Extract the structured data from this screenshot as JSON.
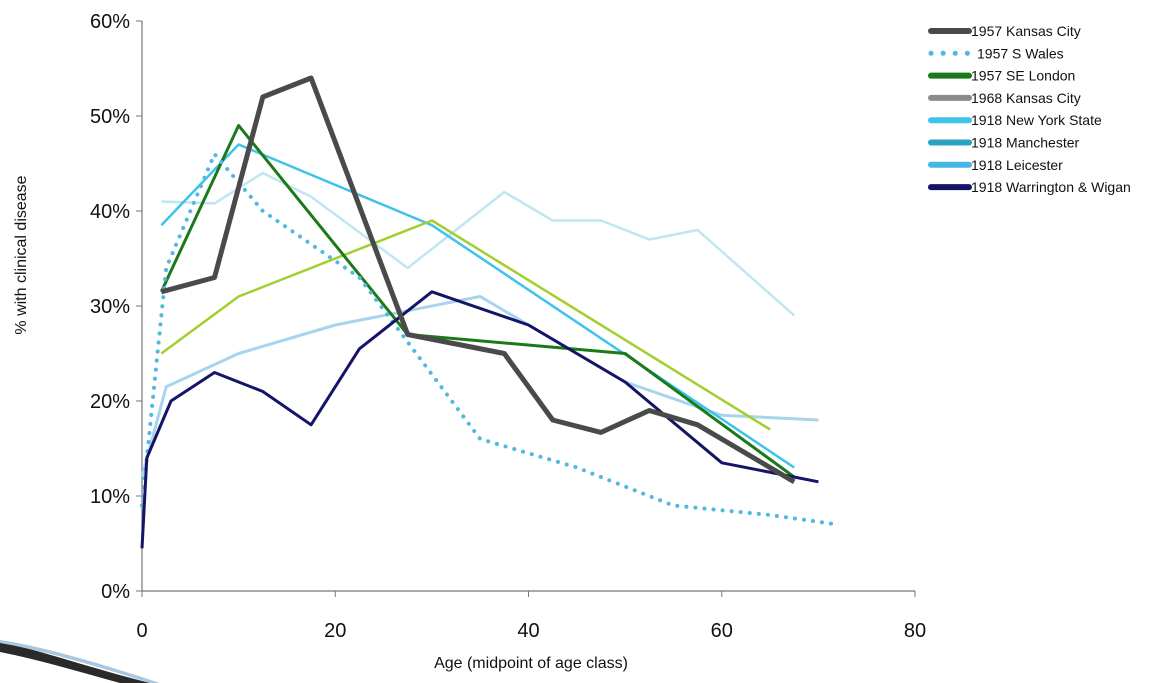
{
  "chart_data": {
    "type": "line",
    "title": "",
    "xlabel": "Age (midpoint of age class)",
    "ylabel": "% with clinical disease",
    "xlim": [
      0,
      80
    ],
    "ylim": [
      0,
      60
    ],
    "x_ticks": [
      0,
      20,
      40,
      60,
      80
    ],
    "y_ticks": [
      0,
      10,
      20,
      30,
      40,
      50,
      60
    ],
    "x_tick_labels": [
      "0",
      "20",
      "40",
      "60",
      "80"
    ],
    "y_tick_labels": [
      "0%",
      "10%",
      "20%",
      "30%",
      "40%",
      "50%",
      "60%"
    ],
    "grid": false,
    "legend_position": "top-right",
    "series": [
      {
        "name": "1957 Kansas City",
        "color": "#4a4a4a",
        "dash": "solid",
        "width": 5,
        "x": [
          2,
          7.5,
          12.5,
          17.5,
          27.5,
          37.5,
          42.5,
          47.5,
          52.5,
          57.5,
          67.5
        ],
        "y": [
          31.5,
          33,
          52,
          54,
          27,
          25,
          18,
          16.7,
          19,
          17.5,
          11.5
        ]
      },
      {
        "name": "1957 S Wales",
        "color": "#52b8e0",
        "dash": "dotted",
        "width": 4,
        "x": [
          0,
          2.5,
          7.5,
          12.5,
          22.5,
          35,
          45,
          55,
          65,
          72
        ],
        "y": [
          9,
          34,
          46,
          40,
          33,
          16,
          13,
          9,
          8,
          7
        ]
      },
      {
        "name": "1957 SE London",
        "color": "#1a7a1a",
        "dash": "solid",
        "width": 3,
        "x": [
          2,
          10,
          27.5,
          50,
          67.5
        ],
        "y": [
          31.5,
          49,
          27,
          25,
          12
        ]
      },
      {
        "name": "1968 Kansas City",
        "color": "#bfe6f2",
        "dash": "solid",
        "width": 2.5,
        "x": [
          2,
          7.5,
          12.5,
          17.5,
          27.5,
          37.5,
          42.5,
          47.5,
          52.5,
          57.5,
          67.5
        ],
        "y": [
          41,
          40.8,
          44,
          41.5,
          34,
          42,
          39,
          39,
          37,
          38,
          29
        ]
      },
      {
        "name": "1918 New York State",
        "color": "#3ec3ea",
        "dash": "solid",
        "width": 2.5,
        "x": [
          2,
          10,
          30,
          67.5
        ],
        "y": [
          38.5,
          47,
          38.5,
          13
        ]
      },
      {
        "name": "1918 Manchester",
        "color": "#a8d4ee",
        "dash": "solid",
        "width": 3,
        "x": [
          0,
          2.5,
          10,
          20,
          35,
          50,
          60,
          70
        ],
        "y": [
          12,
          21.5,
          25,
          28,
          31,
          22,
          18.5,
          18
        ]
      },
      {
        "name": "1918 Leicester",
        "color": "#a3cf2e",
        "dash": "solid",
        "width": 2.5,
        "x": [
          2,
          10,
          30,
          65
        ],
        "y": [
          25,
          31,
          39,
          17
        ]
      },
      {
        "name": "1918 Warrington & Wigan",
        "color": "#141468",
        "dash": "solid",
        "width": 3,
        "x": [
          0,
          0.5,
          3,
          7.5,
          12.5,
          17.5,
          22.5,
          30,
          40,
          50,
          60,
          70
        ],
        "y": [
          4.5,
          14,
          20,
          23,
          21,
          17.5,
          25.5,
          31.5,
          28,
          22,
          13.5,
          11.5
        ]
      }
    ],
    "legend": [
      {
        "label": "1957 Kansas City",
        "color": "#4a4a4a",
        "dash": "solid"
      },
      {
        "label": "1957 S Wales",
        "color": "#52b8e0",
        "dash": "dotted"
      },
      {
        "label": "1957 SE London",
        "color": "#1a7a1a",
        "dash": "solid"
      },
      {
        "label": "1968 Kansas City",
        "color": "#8a8a8a",
        "dash": "solid"
      },
      {
        "label": "1918 New York State",
        "color": "#3ec3ea",
        "dash": "solid"
      },
      {
        "label": "1918 Manchester",
        "color": "#2aa2c0",
        "dash": "solid"
      },
      {
        "label": "1918 Leicester",
        "color": "#45b6e6",
        "dash": "solid"
      },
      {
        "label": "1918 Warrington & Wigan",
        "color": "#141468",
        "dash": "solid"
      }
    ]
  }
}
